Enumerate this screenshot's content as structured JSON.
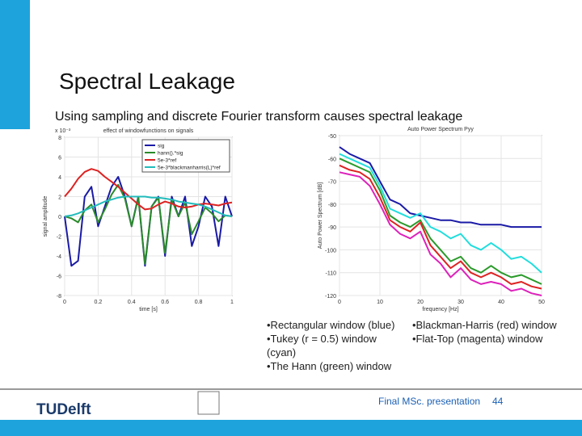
{
  "slide": {
    "title": "Spectral Leakage",
    "subtitle": "Using sampling and discrete Fourier transform causes spectral leakage",
    "bullets_left": [
      "•Rectangular window (blue)",
      "•Tukey (r = 0.5) window (cyan)",
      "•The Hann (green) window"
    ],
    "bullets_right": [
      "•Blackman-Harris (red) window",
      "•Flat-Top (magenta) window"
    ],
    "footer": "Final MSc. presentation",
    "page_number": "44",
    "logo": "TUDelft"
  },
  "chart_data": [
    {
      "type": "line",
      "title": "effect of windowfunctions on signals",
      "xlabel": "time [s]",
      "ylabel": "signal amplitude",
      "multiplier": "x 10⁻³",
      "x": [
        0,
        0.04,
        0.08,
        0.12,
        0.16,
        0.2,
        0.24,
        0.28,
        0.32,
        0.36,
        0.4,
        0.44,
        0.48,
        0.52,
        0.56,
        0.6,
        0.64,
        0.68,
        0.72,
        0.76,
        0.8,
        0.84,
        0.88,
        0.92,
        0.96,
        1
      ],
      "series": [
        {
          "name": "sig",
          "color": "#1a1aa6",
          "values": [
            0,
            -5,
            -4.5,
            2,
            3,
            -1,
            1,
            3,
            4,
            2,
            -1,
            2,
            -5,
            1,
            2,
            -4,
            2,
            0,
            2,
            -3,
            -1,
            2,
            1,
            -3,
            2,
            0
          ]
        },
        {
          "name": "hann().*sig",
          "color": "#2a8a2a",
          "values": [
            0,
            -0.2,
            -0.6,
            0.6,
            1.2,
            -0.6,
            0.7,
            2.2,
            3.2,
            1.8,
            -1,
            1.9,
            -4.8,
            1,
            1.9,
            -3.7,
            1.7,
            0,
            1.4,
            -1.8,
            -0.5,
            0.9,
            0.3,
            -0.5,
            0.1,
            0
          ]
        },
        {
          "name": "5e-3*ref",
          "color": "#dd2222",
          "values": [
            2,
            2.8,
            3.8,
            4.5,
            4.8,
            4.6,
            4,
            3.5,
            3,
            2.4,
            1.8,
            1.2,
            0.7,
            0.8,
            1.2,
            1.5,
            1.3,
            1,
            0.9,
            1,
            1.2,
            1.3,
            1.2,
            1.1,
            1.3,
            1.4
          ]
        },
        {
          "name": "5e-3*blackmanharris(L)*ref",
          "color": "#22bbbb",
          "values": [
            0,
            0.1,
            0.3,
            0.6,
            0.9,
            1.2,
            1.5,
            1.7,
            1.9,
            2,
            2,
            2,
            2,
            1.9,
            1.9,
            1.8,
            1.7,
            1.5,
            1.4,
            1.3,
            1.2,
            1,
            0.7,
            0.4,
            0.1,
            0
          ]
        }
      ],
      "xlim": [
        0,
        1
      ],
      "xticks": [
        0,
        0.2,
        0.4,
        0.6,
        0.8,
        1
      ],
      "ylim": [
        -8,
        8
      ],
      "yticks": [
        -8,
        -6,
        -4,
        -2,
        0,
        2,
        4,
        6,
        8
      ],
      "legend": "upper right",
      "grid": true
    },
    {
      "type": "line",
      "title": "Auto Power Spectrum Pyy",
      "xlabel": "frequency [Hz]",
      "ylabel": "Auto Power Spectrum [dB]",
      "x": [
        0,
        2.5,
        5,
        7.5,
        10,
        12.5,
        15,
        17.5,
        20,
        22.5,
        25,
        27.5,
        30,
        32.5,
        35,
        37.5,
        40,
        42.5,
        45,
        47.5,
        50
      ],
      "series": [
        {
          "color": "#1a1aa6",
          "values": [
            -55,
            -58,
            -60,
            -62,
            -70,
            -78,
            -80,
            -84,
            -85,
            -86,
            -87,
            -87,
            -88,
            -88,
            -89,
            -89,
            -89,
            -90,
            -90,
            -90,
            -90
          ]
        },
        {
          "color": "#22dddd",
          "values": [
            -58,
            -60,
            -62,
            -64,
            -72,
            -82,
            -84,
            -86,
            -84,
            -90,
            -92,
            -95,
            -93,
            -98,
            -100,
            -97,
            -100,
            -104,
            -103,
            -106,
            -110
          ]
        },
        {
          "color": "#2a9a2a",
          "values": [
            -60,
            -62,
            -64,
            -66,
            -74,
            -85,
            -88,
            -90,
            -87,
            -95,
            -100,
            -105,
            -103,
            -108,
            -110,
            -107,
            -110,
            -112,
            -111,
            -113,
            -115
          ]
        },
        {
          "color": "#dd2222",
          "values": [
            -63,
            -65,
            -66,
            -69,
            -77,
            -87,
            -90,
            -92,
            -88,
            -98,
            -103,
            -108,
            -105,
            -110,
            -112,
            -110,
            -112,
            -115,
            -114,
            -116,
            -117
          ]
        },
        {
          "color": "#dd22bb",
          "values": [
            -66,
            -67,
            -68,
            -72,
            -80,
            -89,
            -93,
            -95,
            -92,
            -102,
            -106,
            -112,
            -108,
            -113,
            -115,
            -114,
            -115,
            -118,
            -117,
            -119,
            -120
          ]
        }
      ],
      "xlim": [
        0,
        50
      ],
      "xticks": [
        0,
        10,
        20,
        30,
        40,
        50
      ],
      "ylim": [
        -120,
        -50
      ],
      "yticks": [
        -120,
        -110,
        -100,
        -90,
        -80,
        -70,
        -60,
        -50
      ],
      "grid": true
    }
  ]
}
